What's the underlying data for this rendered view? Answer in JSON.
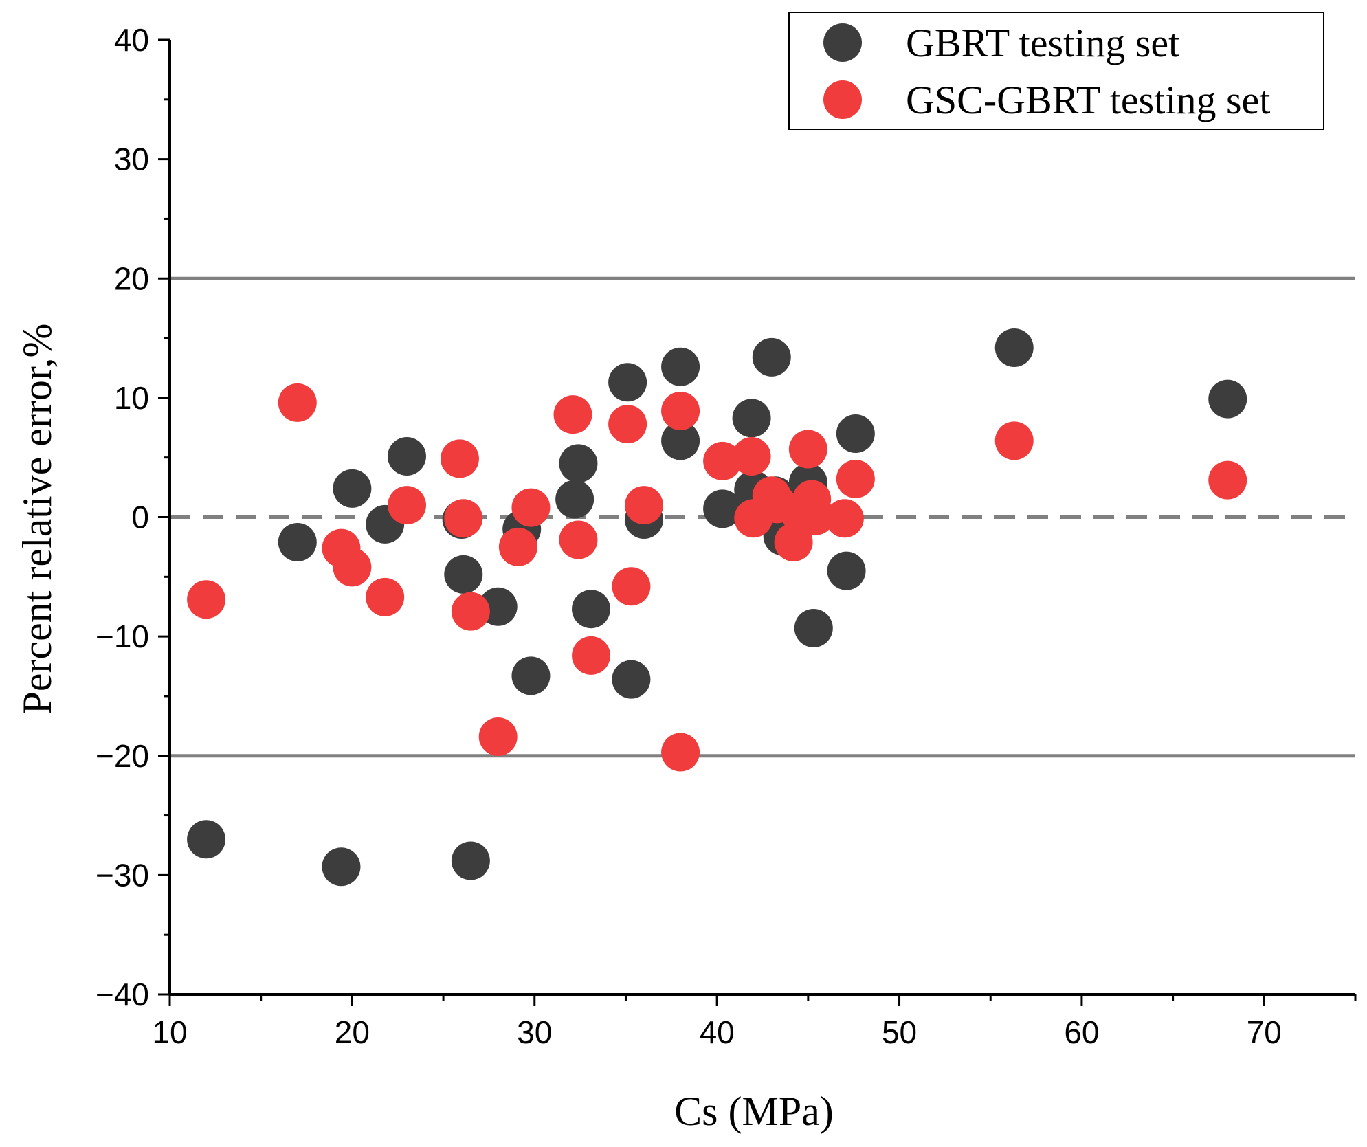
{
  "chart_data": {
    "type": "scatter",
    "xlabel": "Cs (MPa)",
    "ylabel": "Percent relative error,%",
    "xlim": [
      10,
      75
    ],
    "ylim": [
      -40,
      40
    ],
    "x_ticks": [
      10,
      20,
      30,
      40,
      50,
      60,
      70
    ],
    "y_ticks": [
      -40,
      -30,
      -20,
      -10,
      0,
      10,
      20,
      30,
      40
    ],
    "x_tick_labels": [
      "10",
      "20",
      "30",
      "40",
      "50",
      "60",
      "70"
    ],
    "y_tick_labels": [
      "−40",
      "−30",
      "−20",
      "−10",
      "0",
      "10",
      "20",
      "30",
      "40"
    ],
    "reference_lines": [
      {
        "y": 20,
        "style": "solid",
        "color": "#808080"
      },
      {
        "y": -20,
        "style": "solid",
        "color": "#808080"
      },
      {
        "y": 0,
        "style": "dashed",
        "color": "#808080"
      }
    ],
    "legend_position": "top-right",
    "series": [
      {
        "name": "GBRT testing set",
        "color": "#3d3d3d",
        "points": [
          [
            12,
            -27
          ],
          [
            17,
            -2.1
          ],
          [
            19.4,
            -29.3
          ],
          [
            20,
            2.4
          ],
          [
            21.8,
            -0.6
          ],
          [
            23,
            5.1
          ],
          [
            26,
            -0.2
          ],
          [
            26.1,
            -4.8
          ],
          [
            26.5,
            -28.8
          ],
          [
            28,
            -7.5
          ],
          [
            29.3,
            -1
          ],
          [
            29.8,
            -13.3
          ],
          [
            32.2,
            1.5
          ],
          [
            32.4,
            4.5
          ],
          [
            33.1,
            -7.7
          ],
          [
            35.1,
            11.3
          ],
          [
            35.3,
            -13.6
          ],
          [
            36,
            -0.2
          ],
          [
            38,
            12.6
          ],
          [
            38,
            6.4
          ],
          [
            40.3,
            0.7
          ],
          [
            41.9,
            8.3
          ],
          [
            42,
            2.3
          ],
          [
            43,
            13.4
          ],
          [
            43.2,
            1.8
          ],
          [
            43.6,
            -1.6
          ],
          [
            45,
            2.9
          ],
          [
            45.3,
            -9.3
          ],
          [
            47.1,
            -4.5
          ],
          [
            47.6,
            7
          ]
        ]
      },
      {
        "name": "GSC-GBRT testing set",
        "color": "#f03c3c",
        "points": [
          [
            12,
            -6.9
          ],
          [
            17,
            9.6
          ],
          [
            19.4,
            -2.6
          ],
          [
            20,
            -4.2
          ],
          [
            21.8,
            -6.7
          ],
          [
            23,
            1
          ],
          [
            25.9,
            4.9
          ],
          [
            26.1,
            -0.1
          ],
          [
            26.5,
            -7.9
          ],
          [
            28,
            -18.4
          ],
          [
            29.1,
            -2.5
          ],
          [
            29.8,
            0.8
          ],
          [
            32.1,
            8.6
          ],
          [
            32.4,
            -1.9
          ],
          [
            33.1,
            -11.6
          ],
          [
            35.1,
            7.8
          ],
          [
            35.3,
            -5.8
          ],
          [
            36,
            1
          ],
          [
            38,
            8.9
          ],
          [
            38,
            -19.7
          ],
          [
            40.3,
            4.7
          ],
          [
            41.9,
            5.1
          ],
          [
            42,
            -0.1
          ],
          [
            43,
            1.8
          ],
          [
            43.3,
            1.1
          ],
          [
            44.2,
            -2.1
          ],
          [
            44.6,
            0.2
          ],
          [
            45,
            5.7
          ],
          [
            45.2,
            1.5
          ],
          [
            45.4,
            0.1
          ],
          [
            47,
            -0.1
          ],
          [
            47.6,
            3.2
          ],
          [
            56.3,
            6.4
          ],
          [
            68,
            3.1
          ]
        ]
      },
      {
        "name": "GBRT testing set",
        "legend": false,
        "color": "#3d3d3d",
        "points": [
          [
            56.3,
            14.2
          ],
          [
            68,
            9.9
          ]
        ]
      }
    ]
  }
}
